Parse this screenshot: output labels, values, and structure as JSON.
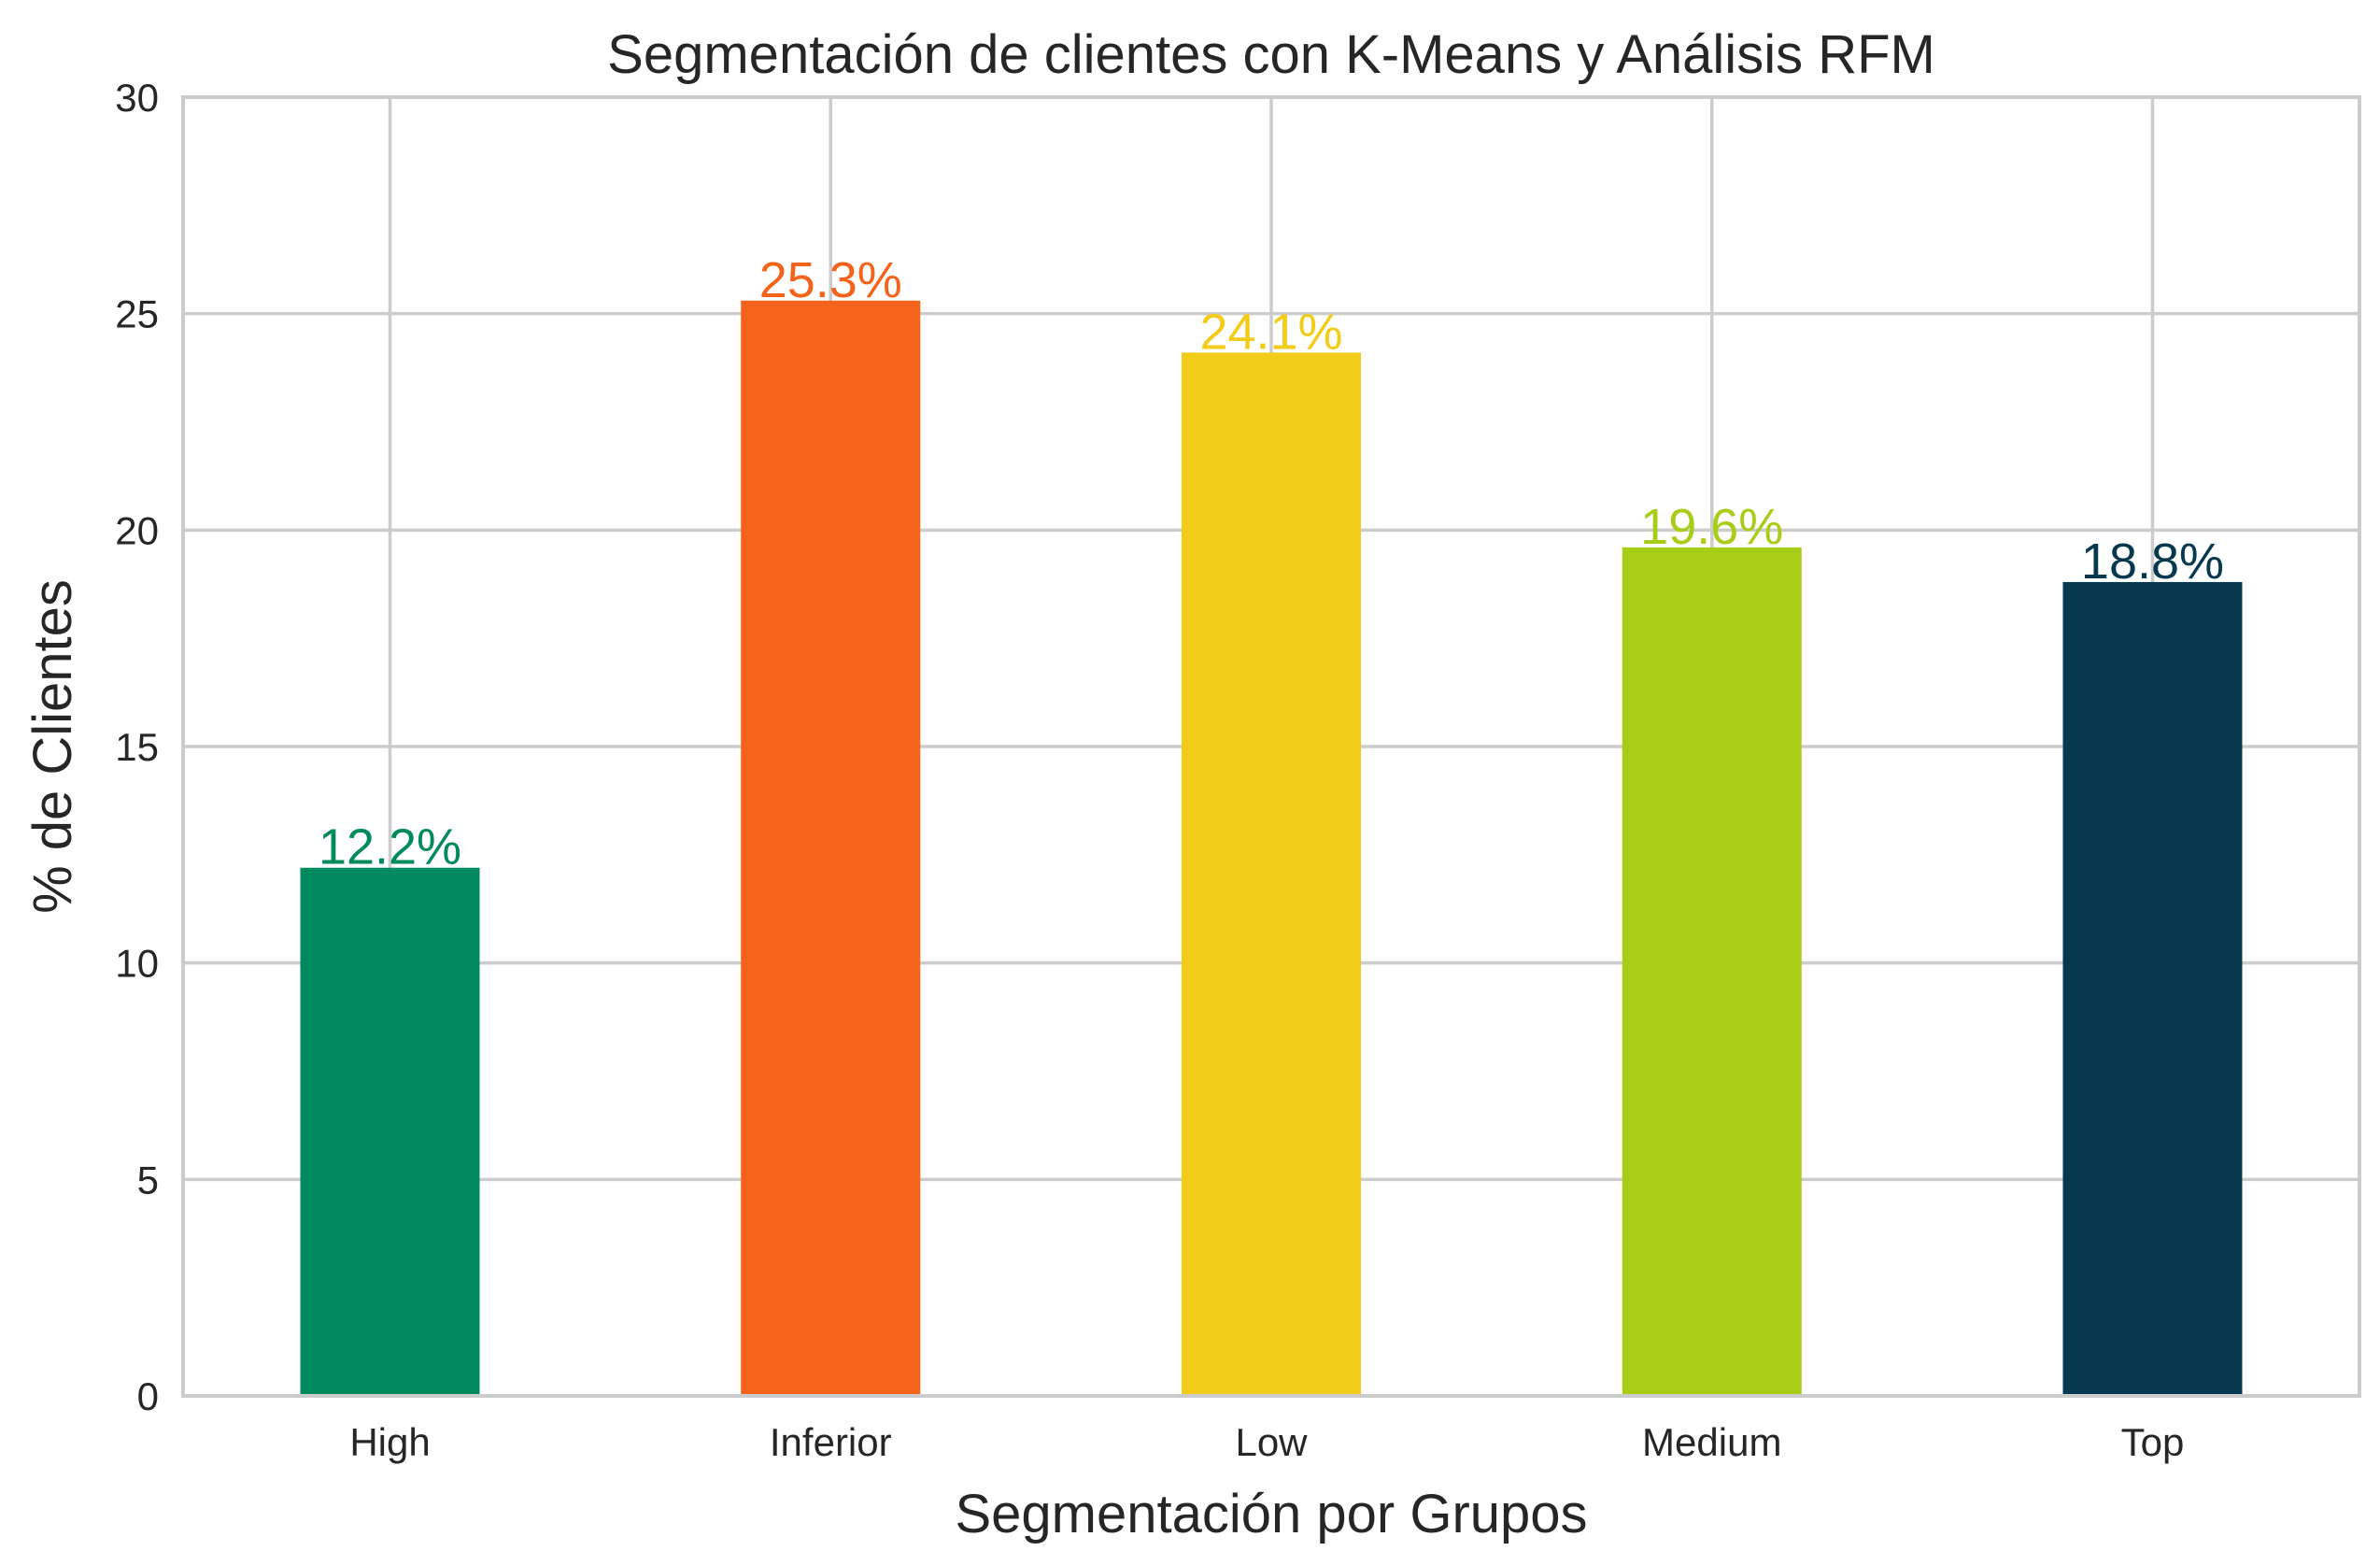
{
  "chart_data": {
    "type": "bar",
    "title": "Segmentación de clientes con K-Means y Análisis RFM",
    "xlabel": "Segmentación por Grupos",
    "ylabel": "% de Clientes",
    "categories": [
      "High",
      "Inferior",
      "Low",
      "Medium",
      "Top"
    ],
    "values": [
      12.2,
      25.3,
      24.1,
      19.6,
      18.8
    ],
    "data_labels": [
      "12.2%",
      "25.3%",
      "24.1%",
      "19.6%",
      "18.8%"
    ],
    "colors": [
      "#028A5F",
      "#F4631A",
      "#F3CC1A",
      "#A8CD17",
      "#06384F"
    ],
    "ylim": [
      0,
      30
    ],
    "yticks": [
      0,
      5,
      10,
      15,
      20,
      25,
      30
    ],
    "ytick_labels": [
      "0",
      "5",
      "10",
      "15",
      "20",
      "25",
      "30"
    ],
    "grid": true,
    "legend": "none"
  }
}
